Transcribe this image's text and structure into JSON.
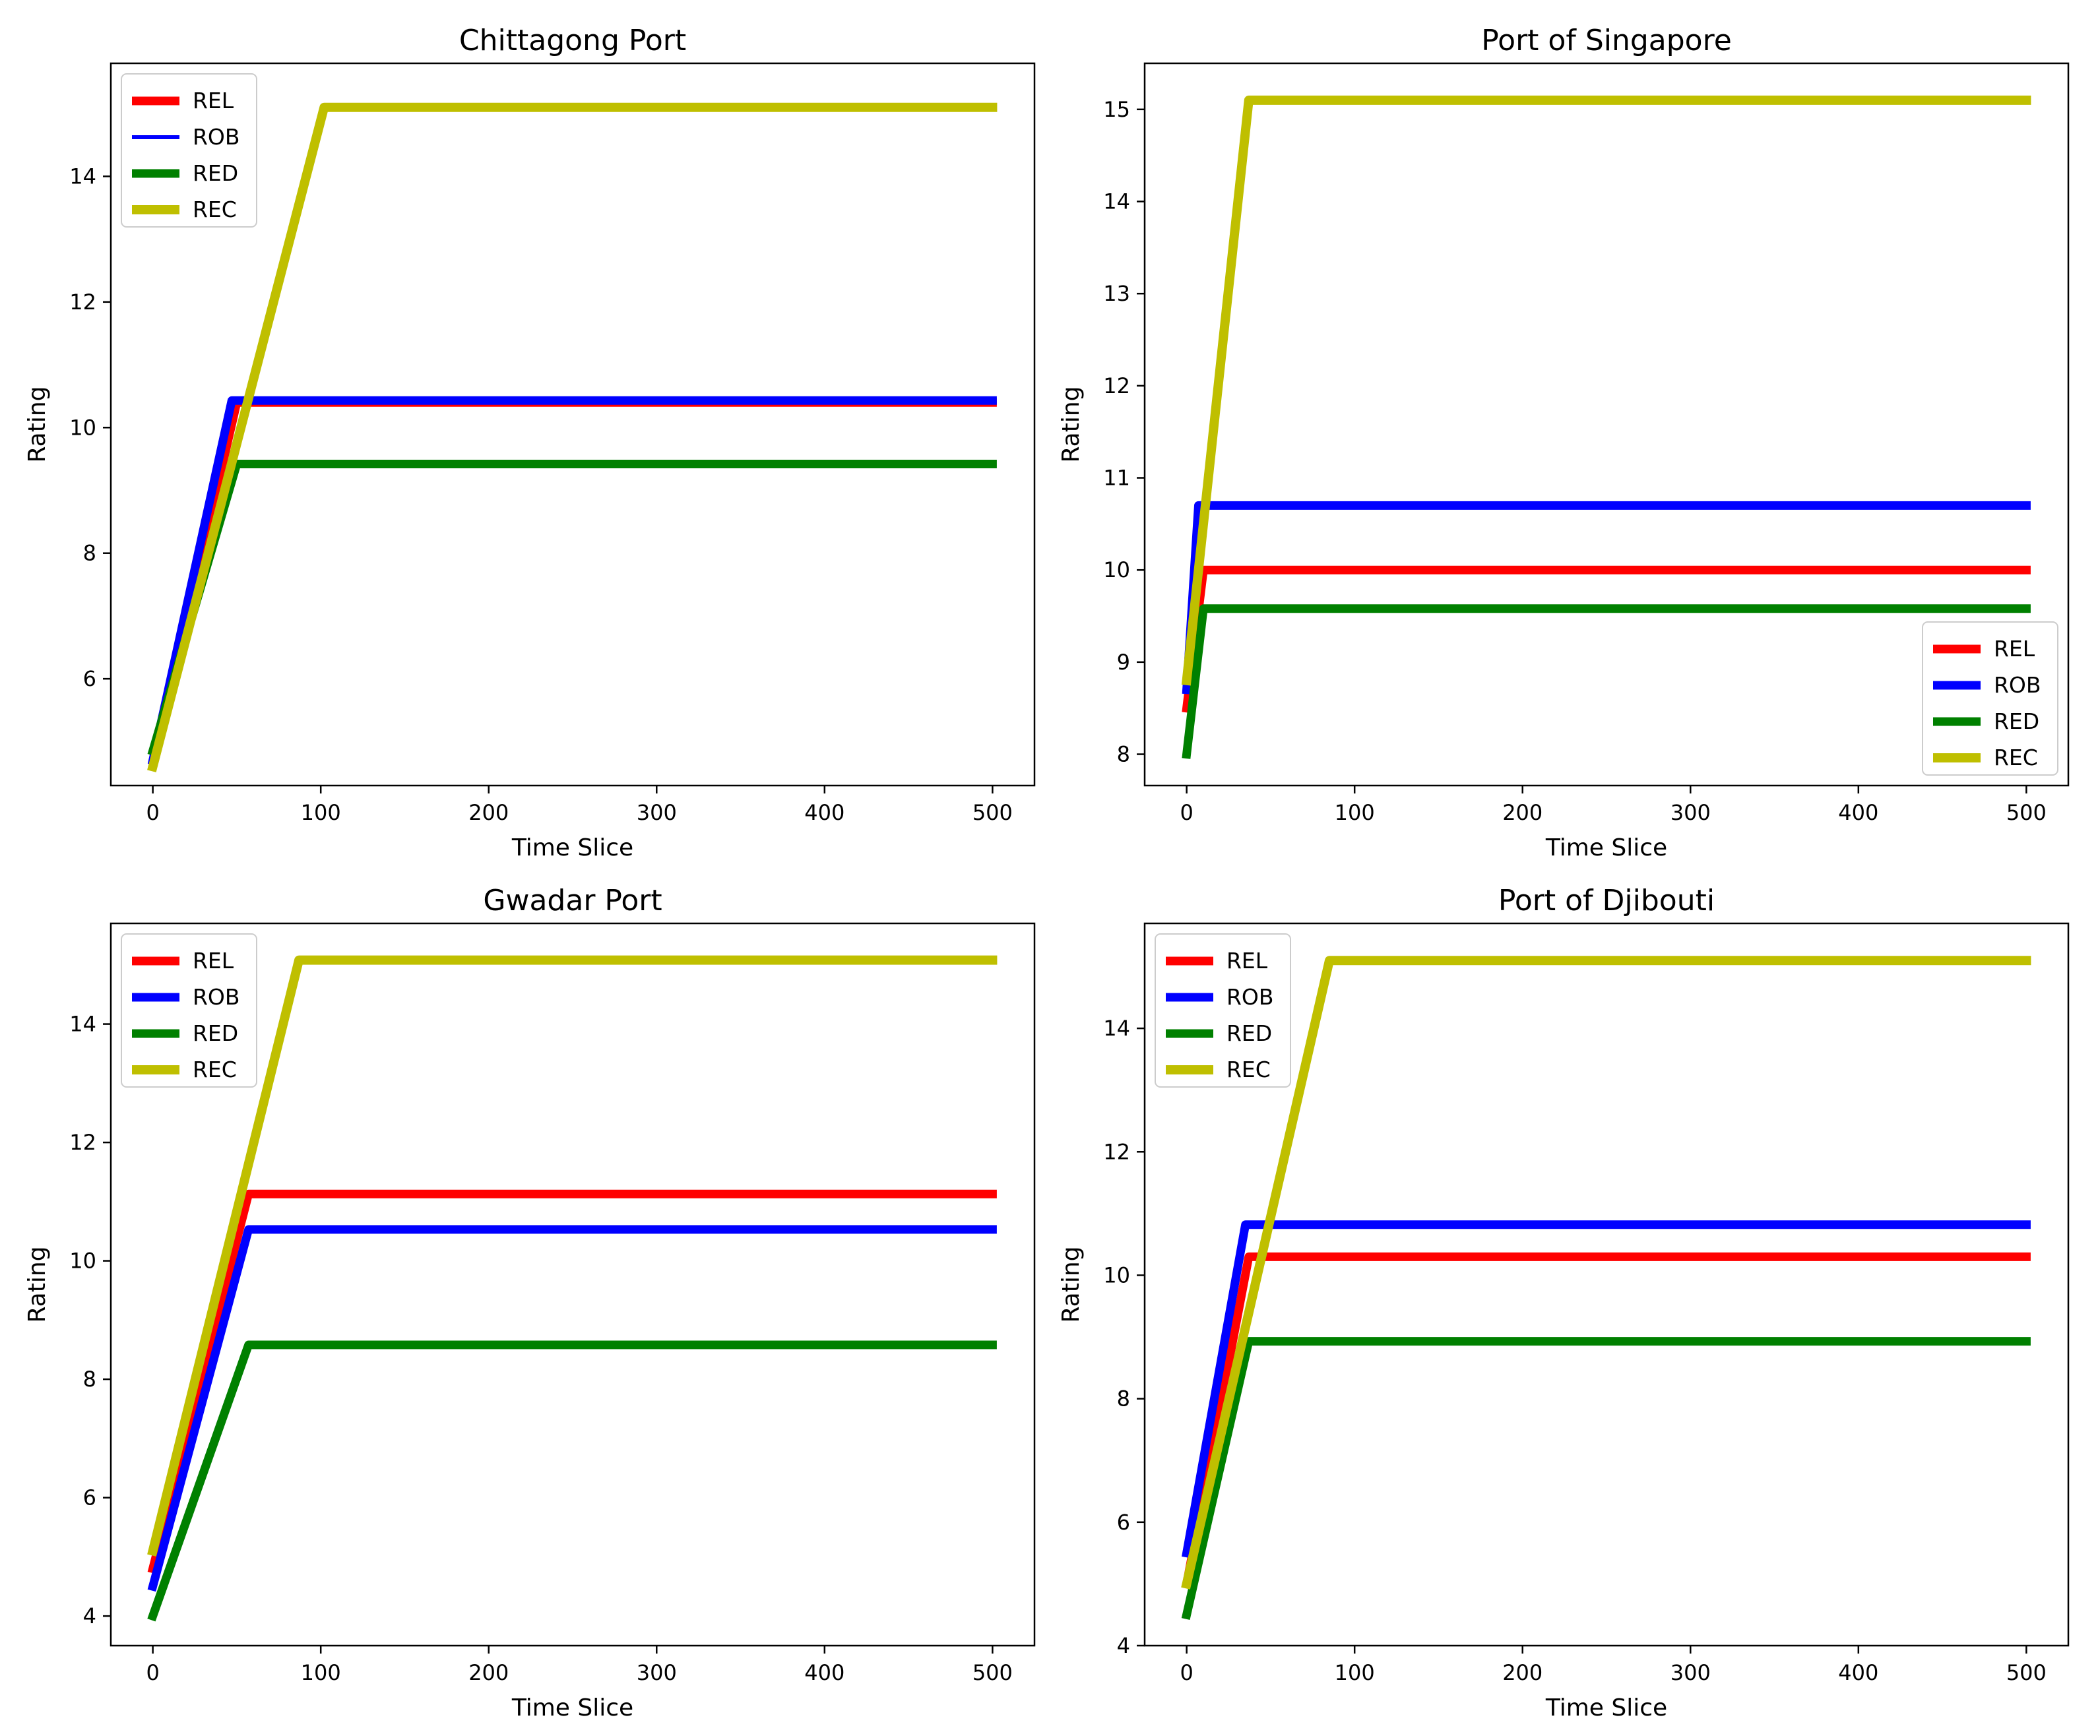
{
  "chart_data": [
    {
      "type": "line",
      "title": "Chittagong Port",
      "xlabel": "Time Slice",
      "ylabel": "Rating",
      "xlim": [
        -25,
        525
      ],
      "ylim": [
        4.3,
        15.8
      ],
      "xticks": [
        0,
        100,
        200,
        300,
        400,
        500
      ],
      "yticks": [
        6,
        8,
        10,
        12,
        14
      ],
      "legend": "upper-left",
      "series": [
        {
          "name": "REL",
          "color": "#ff0000",
          "x": [
            0,
            50,
            500
          ],
          "y": [
            4.6,
            10.4,
            10.4
          ]
        },
        {
          "name": "ROB",
          "color": "#0000ff",
          "x": [
            0,
            47,
            500
          ],
          "y": [
            4.7,
            10.43,
            10.43
          ]
        },
        {
          "name": "RED",
          "color": "#008000",
          "x": [
            0,
            50,
            500
          ],
          "y": [
            4.85,
            9.42,
            9.42
          ]
        },
        {
          "name": "REC",
          "color": "#bfbf00",
          "x": [
            0,
            102,
            500
          ],
          "y": [
            4.6,
            15.1,
            15.1
          ]
        }
      ]
    },
    {
      "type": "line",
      "title": "Port of Singapore",
      "xlabel": "Time Slice",
      "ylabel": "Rating",
      "xlim": [
        -25,
        525
      ],
      "ylim": [
        7.66,
        15.5
      ],
      "xticks": [
        0,
        100,
        200,
        300,
        400,
        500
      ],
      "yticks": [
        8,
        9,
        10,
        11,
        12,
        13,
        14,
        15
      ],
      "legend": "lower-right",
      "series": [
        {
          "name": "REL",
          "color": "#ff0000",
          "x": [
            0,
            10,
            500
          ],
          "y": [
            8.5,
            10.0,
            10.0
          ]
        },
        {
          "name": "ROB",
          "color": "#0000ff",
          "x": [
            0,
            7,
            500
          ],
          "y": [
            8.7,
            10.7,
            10.7
          ]
        },
        {
          "name": "RED",
          "color": "#008000",
          "x": [
            0,
            10,
            500
          ],
          "y": [
            8.0,
            9.58,
            9.58
          ]
        },
        {
          "name": "REC",
          "color": "#bfbf00",
          "x": [
            0,
            37,
            500
          ],
          "y": [
            8.8,
            15.1,
            15.1
          ]
        }
      ]
    },
    {
      "type": "line",
      "title": "Gwadar Port",
      "xlabel": "Time Slice",
      "ylabel": "Rating",
      "xlim": [
        -25,
        525
      ],
      "ylim": [
        3.5,
        15.7
      ],
      "xticks": [
        0,
        100,
        200,
        300,
        400,
        500
      ],
      "yticks": [
        4,
        6,
        8,
        10,
        12,
        14
      ],
      "legend": "upper-left",
      "series": [
        {
          "name": "REL",
          "color": "#ff0000",
          "x": [
            0,
            57,
            500
          ],
          "y": [
            4.8,
            11.13,
            11.13
          ]
        },
        {
          "name": "ROB",
          "color": "#0000ff",
          "x": [
            0,
            57,
            500
          ],
          "y": [
            4.5,
            10.53,
            10.53
          ]
        },
        {
          "name": "RED",
          "color": "#008000",
          "x": [
            0,
            57,
            500
          ],
          "y": [
            4.0,
            8.58,
            8.58
          ]
        },
        {
          "name": "REC",
          "color": "#bfbf00",
          "x": [
            0,
            87,
            500
          ],
          "y": [
            5.1,
            15.08,
            15.08
          ]
        }
      ]
    },
    {
      "type": "line",
      "title": "Port of Djibouti",
      "xlabel": "Time Slice",
      "ylabel": "Rating",
      "xlim": [
        -25,
        525
      ],
      "ylim": [
        4.0,
        15.7
      ],
      "xticks": [
        0,
        100,
        200,
        300,
        400,
        500
      ],
      "yticks": [
        4,
        6,
        8,
        10,
        12,
        14
      ],
      "legend": "upper-left",
      "series": [
        {
          "name": "REL",
          "color": "#ff0000",
          "x": [
            0,
            37,
            500
          ],
          "y": [
            5.0,
            10.3,
            10.3
          ]
        },
        {
          "name": "ROB",
          "color": "#0000ff",
          "x": [
            0,
            35,
            500
          ],
          "y": [
            5.5,
            10.82,
            10.82
          ]
        },
        {
          "name": "RED",
          "color": "#008000",
          "x": [
            0,
            37,
            500
          ],
          "y": [
            4.5,
            8.93,
            8.93
          ]
        },
        {
          "name": "REC",
          "color": "#bfbf00",
          "x": [
            0,
            85,
            500
          ],
          "y": [
            5.0,
            15.1,
            15.1
          ]
        }
      ]
    }
  ]
}
